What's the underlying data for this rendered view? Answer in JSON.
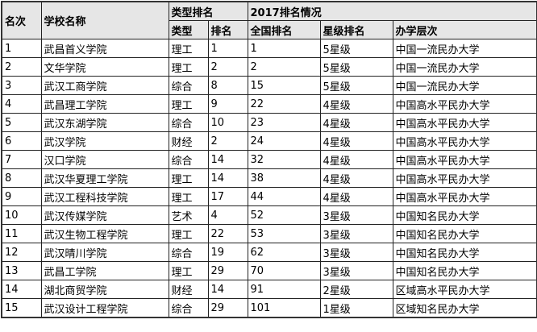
{
  "headers": {
    "rank": "名次",
    "school": "学校名称",
    "type_group": "类型排名",
    "year_group": "2017排名情况",
    "type": "类型",
    "type_rank": "排名",
    "national_rank": "全国排名",
    "star_rank": "星级排名",
    "level": "办学层次"
  },
  "rows": [
    [
      "1",
      "武昌首义学院",
      "理工",
      "1",
      "1",
      "5星级",
      "中国一流民办大学"
    ],
    [
      "2",
      "文华学院",
      "理工",
      "2",
      "2",
      "5星级",
      "中国一流民办大学"
    ],
    [
      "3",
      "武汉工商学院",
      "综合",
      "8",
      "15",
      "5星级",
      "中国一流民办大学"
    ],
    [
      "4",
      "武昌理工学院",
      "理工",
      "9",
      "22",
      "4星级",
      "中国高水平民办大学"
    ],
    [
      "5",
      "武汉东湖学院",
      "综合",
      "10",
      "23",
      "4星级",
      "中国高水平民办大学"
    ],
    [
      "6",
      "武汉学院",
      "财经",
      "2",
      "24",
      "4星级",
      "中国高水平民办大学"
    ],
    [
      "7",
      "汉口学院",
      "综合",
      "14",
      "32",
      "4星级",
      "中国高水平民办大学"
    ],
    [
      "8",
      "武汉华夏理工学院",
      "理工",
      "14",
      "38",
      "4星级",
      "中国高水平民办大学"
    ],
    [
      "9",
      "武汉工程科技学院",
      "理工",
      "17",
      "44",
      "4星级",
      "中国高水平民办大学"
    ],
    [
      "10",
      "武汉传媒学院",
      "艺术",
      "4",
      "52",
      "3星级",
      "中国知名民办大学"
    ],
    [
      "11",
      "武汉生物工程学院",
      "理工",
      "22",
      "53",
      "3星级",
      "中国知名民办大学"
    ],
    [
      "12",
      "武汉晴川学院",
      "综合",
      "19",
      "62",
      "3星级",
      "中国知名民办大学"
    ],
    [
      "13",
      "武昌工学院",
      "理工",
      "29",
      "70",
      "3星级",
      "中国知名民办大学"
    ],
    [
      "14",
      "湖北商贸学院",
      "财经",
      "14",
      "91",
      "2星级",
      "区域高水平民办大学"
    ],
    [
      "15",
      "武汉设计工程学院",
      "综合",
      "29",
      "101",
      "1星级",
      "区域知名民办大学"
    ]
  ]
}
